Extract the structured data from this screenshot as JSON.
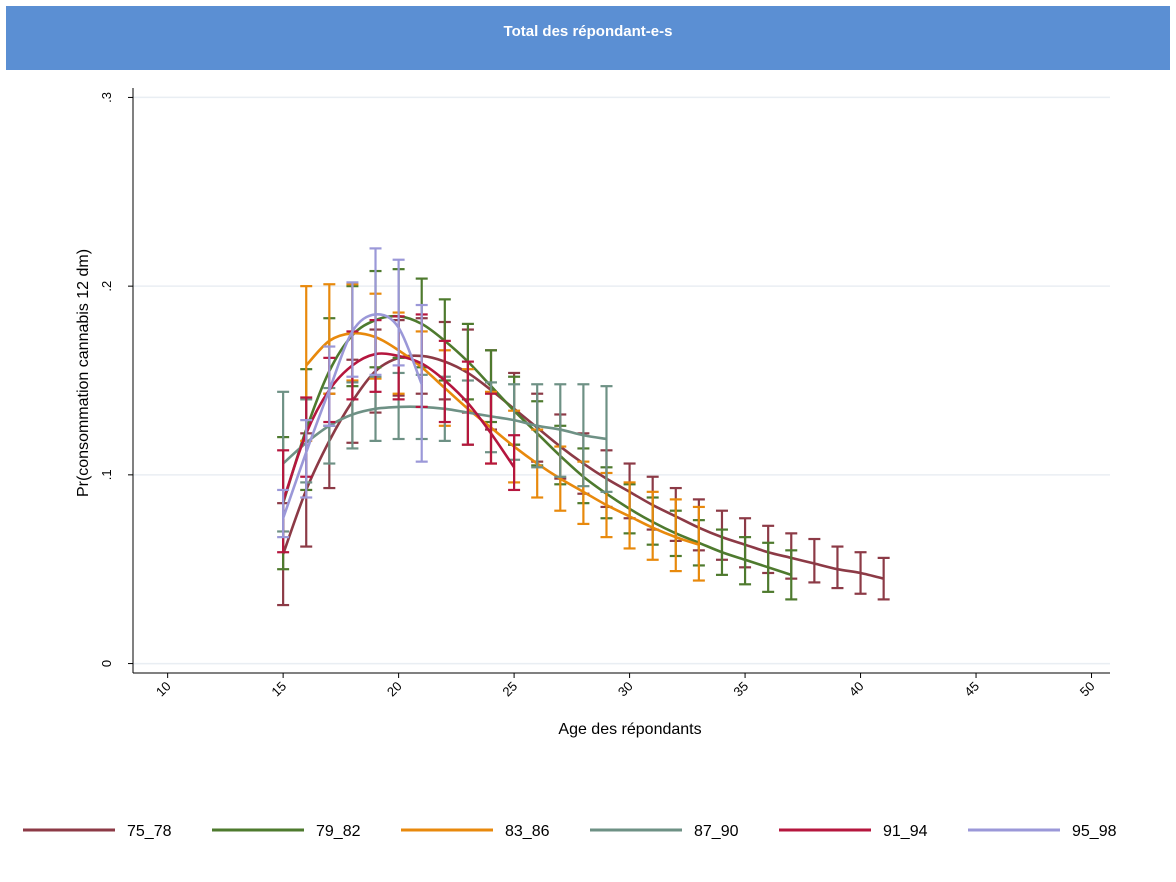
{
  "chart_data": {
    "type": "line",
    "title": "Total des répondant-e-s",
    "xlabel": "Age des répondants",
    "ylabel": "Pr(consommation cannabis 12 dm)",
    "xlim": [
      8.5,
      50.8
    ],
    "ylim": [
      -0.005,
      0.305
    ],
    "x_ticks": [
      10,
      15,
      20,
      25,
      30,
      35,
      40,
      45,
      50
    ],
    "x_tick_labels": [
      "10",
      "15",
      "20",
      "25",
      "30",
      "35",
      "40",
      "45",
      "50"
    ],
    "y_ticks": [
      0,
      0.1,
      0.2,
      0.3
    ],
    "y_tick_labels": [
      "0",
      ".1",
      ".2",
      ".3"
    ],
    "grid": "horizontal",
    "legend_position": "bottom",
    "error_bars": "confidence interval caps at each age",
    "series": [
      {
        "name": "75_78",
        "color": "#8c3a46",
        "x": [
          15,
          16,
          17,
          18,
          19,
          20,
          21,
          22,
          23,
          24,
          25,
          26,
          27,
          28,
          29,
          30,
          31,
          32,
          33,
          34,
          35,
          36,
          37,
          38,
          39,
          40,
          41
        ],
        "y": [
          0.058,
          0.092,
          0.118,
          0.139,
          0.155,
          0.162,
          0.163,
          0.16,
          0.154,
          0.145,
          0.135,
          0.125,
          0.115,
          0.106,
          0.098,
          0.091,
          0.084,
          0.078,
          0.072,
          0.067,
          0.063,
          0.059,
          0.056,
          0.053,
          0.05,
          0.048,
          0.045
        ],
        "lo": [
          0.031,
          0.062,
          0.093,
          0.117,
          0.133,
          0.142,
          0.143,
          0.14,
          0.133,
          0.124,
          0.116,
          0.107,
          0.098,
          0.09,
          0.083,
          0.077,
          0.071,
          0.065,
          0.06,
          0.055,
          0.051,
          0.048,
          0.045,
          0.043,
          0.04,
          0.037,
          0.034
        ],
        "hi": [
          0.085,
          0.122,
          0.143,
          0.161,
          0.177,
          0.182,
          0.183,
          0.181,
          0.177,
          0.166,
          0.154,
          0.143,
          0.132,
          0.122,
          0.113,
          0.106,
          0.099,
          0.093,
          0.087,
          0.081,
          0.077,
          0.073,
          0.069,
          0.066,
          0.062,
          0.059,
          0.056
        ]
      },
      {
        "name": "79_82",
        "color": "#4e7a2e",
        "x": [
          15,
          16,
          17,
          18,
          19,
          20,
          21,
          22,
          23,
          24,
          25,
          26,
          27,
          28,
          29,
          30,
          31,
          32,
          33,
          34,
          35,
          36,
          37
        ],
        "y": [
          0.085,
          0.124,
          0.155,
          0.174,
          0.182,
          0.184,
          0.18,
          0.171,
          0.16,
          0.147,
          0.134,
          0.122,
          0.11,
          0.099,
          0.09,
          0.082,
          0.075,
          0.069,
          0.064,
          0.059,
          0.055,
          0.051,
          0.047
        ],
        "lo": [
          0.05,
          0.092,
          0.126,
          0.147,
          0.157,
          0.162,
          0.157,
          0.15,
          0.14,
          0.128,
          0.116,
          0.105,
          0.095,
          0.085,
          0.077,
          0.069,
          0.063,
          0.057,
          0.052,
          0.047,
          0.042,
          0.038,
          0.034
        ],
        "hi": [
          0.12,
          0.156,
          0.183,
          0.2,
          0.208,
          0.209,
          0.204,
          0.193,
          0.18,
          0.166,
          0.152,
          0.139,
          0.126,
          0.114,
          0.104,
          0.095,
          0.088,
          0.081,
          0.076,
          0.071,
          0.067,
          0.064,
          0.06
        ]
      },
      {
        "name": "83_86",
        "color": "#e8890c",
        "x": [
          16,
          17,
          18,
          19,
          20,
          21,
          22,
          23,
          24,
          25,
          26,
          27,
          28,
          29,
          30,
          31,
          32,
          33
        ],
        "y": [
          0.158,
          0.171,
          0.175,
          0.173,
          0.166,
          0.157,
          0.146,
          0.135,
          0.125,
          0.115,
          0.106,
          0.098,
          0.091,
          0.084,
          0.078,
          0.072,
          0.067,
          0.063
        ],
        "lo": [
          0.118,
          0.143,
          0.15,
          0.151,
          0.143,
          0.136,
          0.126,
          0.116,
          0.106,
          0.096,
          0.088,
          0.081,
          0.074,
          0.067,
          0.061,
          0.055,
          0.049,
          0.044
        ],
        "hi": [
          0.2,
          0.201,
          0.201,
          0.196,
          0.186,
          0.176,
          0.166,
          0.156,
          0.144,
          0.134,
          0.124,
          0.115,
          0.107,
          0.101,
          0.096,
          0.091,
          0.087,
          0.083
        ]
      },
      {
        "name": "87_90",
        "color": "#6e9185",
        "x": [
          15,
          16,
          17,
          18,
          19,
          20,
          21,
          22,
          23,
          24,
          25,
          26,
          27,
          28,
          29
        ],
        "y": [
          0.106,
          0.117,
          0.126,
          0.132,
          0.135,
          0.136,
          0.136,
          0.135,
          0.133,
          0.131,
          0.129,
          0.126,
          0.124,
          0.121,
          0.119
        ],
        "lo": [
          0.07,
          0.096,
          0.106,
          0.114,
          0.118,
          0.119,
          0.119,
          0.118,
          0.116,
          0.112,
          0.108,
          0.104,
          0.099,
          0.094,
          0.091
        ],
        "hi": [
          0.144,
          0.14,
          0.146,
          0.149,
          0.152,
          0.154,
          0.153,
          0.152,
          0.15,
          0.149,
          0.148,
          0.148,
          0.148,
          0.148,
          0.147
        ]
      },
      {
        "name": "91_94",
        "color": "#b5163e",
        "x": [
          15,
          16,
          17,
          18,
          19,
          20,
          21,
          22,
          23,
          24,
          25
        ],
        "y": [
          0.086,
          0.122,
          0.145,
          0.158,
          0.164,
          0.163,
          0.159,
          0.15,
          0.138,
          0.122,
          0.104
        ],
        "lo": [
          0.059,
          0.099,
          0.128,
          0.14,
          0.144,
          0.14,
          0.136,
          0.128,
          0.116,
          0.106,
          0.092
        ],
        "hi": [
          0.113,
          0.141,
          0.162,
          0.176,
          0.182,
          0.184,
          0.185,
          0.171,
          0.16,
          0.143,
          0.121
        ]
      },
      {
        "name": "95_98",
        "color": "#9b98d8",
        "x": [
          15,
          16,
          17,
          18,
          19,
          20,
          21
        ],
        "y": [
          0.077,
          0.112,
          0.145,
          0.176,
          0.185,
          0.178,
          0.148
        ],
        "lo": [
          0.067,
          0.088,
          0.126,
          0.152,
          0.153,
          0.158,
          0.107
        ],
        "hi": [
          0.092,
          0.129,
          0.168,
          0.202,
          0.22,
          0.214,
          0.19
        ]
      }
    ]
  }
}
